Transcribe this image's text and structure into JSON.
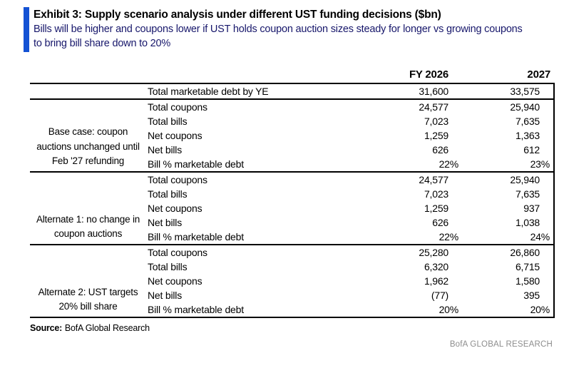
{
  "exhibit": {
    "title": "Exhibit 3: Supply scenario analysis under different UST funding decisions ($bn)",
    "subtitle": "Bills will be higher and coupons lower if UST holds coupon auction sizes steady for longer vs growing coupons to bring bill share down to 20%"
  },
  "colors": {
    "accent_bar": "#1452D4",
    "subtitle_text": "#17176B",
    "brand_text": "#8D8D8D",
    "table_border": "#000000"
  },
  "table": {
    "col_headers": [
      "FY 2026",
      "2027"
    ],
    "intro_row": {
      "label": "Total marketable debt by YE",
      "fy2026": "31,600",
      "y2027": "33,575"
    },
    "sections": [
      {
        "scenario": "Base case: coupon auctions unchanged until Feb '27 refunding",
        "rows": [
          {
            "label": "Total coupons",
            "fy2026": "24,577",
            "y2027": "25,940"
          },
          {
            "label": "Total bills",
            "fy2026": "7,023",
            "y2027": "7,635"
          },
          {
            "label": "Net coupons",
            "fy2026": "1,259",
            "y2027": "1,363"
          },
          {
            "label": "Net bills",
            "fy2026": "626",
            "y2027": "612"
          },
          {
            "label": "Bill % marketable debt",
            "fy2026": "22%",
            "y2027": "23%"
          }
        ]
      },
      {
        "scenario": "Alternate 1: no change in coupon auctions",
        "rows": [
          {
            "label": "Total coupons",
            "fy2026": "24,577",
            "y2027": "25,940"
          },
          {
            "label": "Total bills",
            "fy2026": "7,023",
            "y2027": "7,635"
          },
          {
            "label": "Net coupons",
            "fy2026": "1,259",
            "y2027": "937"
          },
          {
            "label": "Net bills",
            "fy2026": "626",
            "y2027": "1,038"
          },
          {
            "label": "Bill % marketable debt",
            "fy2026": "22%",
            "y2027": "24%"
          }
        ]
      },
      {
        "scenario": "Alternate 2: UST targets 20% bill share",
        "rows": [
          {
            "label": "Total coupons",
            "fy2026": "25,280",
            "y2027": "26,860"
          },
          {
            "label": "Total bills",
            "fy2026": "6,320",
            "y2027": "6,715"
          },
          {
            "label": "Net coupons",
            "fy2026": "1,962",
            "y2027": "1,580"
          },
          {
            "label": "Net bills",
            "fy2026": "(77)",
            "y2027": "395"
          },
          {
            "label": "Bill % marketable debt",
            "fy2026": "20%",
            "y2027": "20%"
          }
        ]
      }
    ]
  },
  "footer": {
    "source_label": "Source:",
    "source_text": "BofA Global Research",
    "brand": "BofA GLOBAL RESEARCH"
  }
}
